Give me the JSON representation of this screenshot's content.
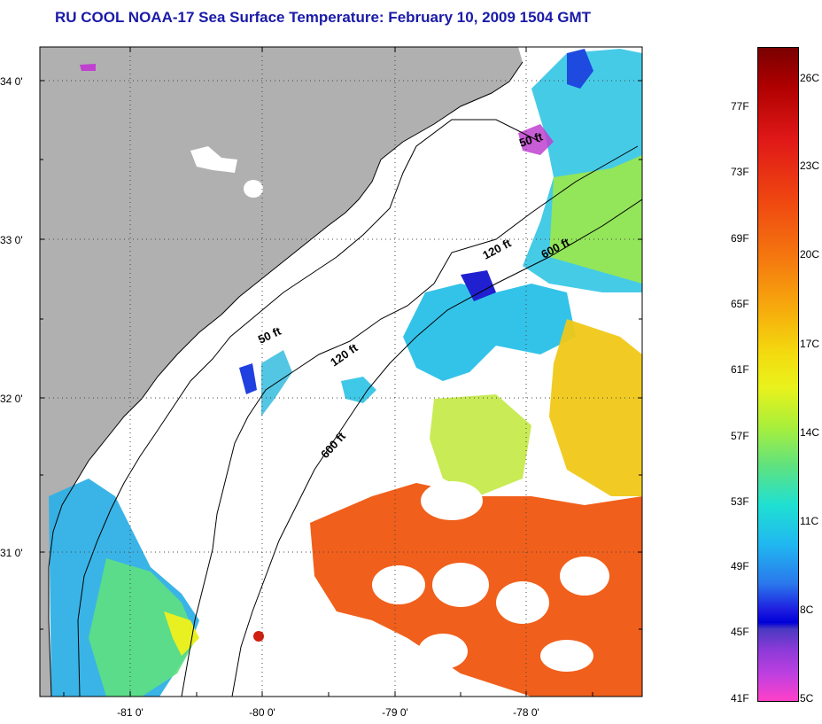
{
  "title": "RU COOL  NOAA-17  Sea Surface Temperature:  February 10, 2009 1504 GMT",
  "colors": {
    "land": "#b0b0b0",
    "cloud": "#ffffff",
    "title": "#1a1aa8",
    "warm": "#f05a14",
    "cool": "#30b8f0",
    "mid": "#e6f020"
  },
  "axes": {
    "lat_labels": [
      "34 0'",
      "33 0'",
      "32 0'",
      "31 0'"
    ],
    "lon_labels": [
      "-81 0'",
      "-80 0'",
      "-79 0'",
      "-78 0'"
    ]
  },
  "isobaths": [
    {
      "label": "50 ft"
    },
    {
      "label": "50 ft"
    },
    {
      "label": "120 ft"
    },
    {
      "label": "120 ft"
    },
    {
      "label": "600 ft"
    },
    {
      "label": "600 ft"
    }
  ],
  "colorbar": {
    "fahrenheit": [
      "77F",
      "73F",
      "69F",
      "65F",
      "61F",
      "57F",
      "53F",
      "49F",
      "45F",
      "41F"
    ],
    "celsius": [
      "26C",
      "23C",
      "20C",
      "17C",
      "14C",
      "11C",
      "8C",
      "5C"
    ]
  }
}
